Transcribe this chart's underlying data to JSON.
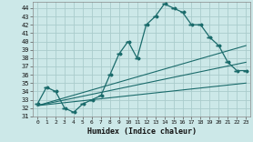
{
  "xlabel": "Humidex (Indice chaleur)",
  "bg_color": "#cce8e8",
  "grid_color": "#aacccc",
  "line_color": "#1a6b6b",
  "xlim": [
    -0.5,
    23.5
  ],
  "ylim": [
    31,
    44.8
  ],
  "yticks": [
    31,
    32,
    33,
    34,
    35,
    36,
    37,
    38,
    39,
    40,
    41,
    42,
    43,
    44
  ],
  "xticks": [
    0,
    1,
    2,
    3,
    4,
    5,
    6,
    7,
    8,
    9,
    10,
    11,
    12,
    13,
    14,
    15,
    16,
    17,
    18,
    19,
    20,
    21,
    22,
    23
  ],
  "series1_x": [
    0,
    1,
    2,
    3,
    4,
    5,
    6,
    7,
    8,
    9,
    10,
    11,
    12,
    13,
    14,
    15,
    16,
    17,
    18,
    19,
    20,
    21,
    22,
    23
  ],
  "series1_y": [
    32.5,
    34.5,
    34.0,
    32.0,
    31.5,
    32.5,
    33.0,
    33.5,
    36.0,
    38.5,
    40.0,
    38.0,
    42.0,
    43.0,
    44.5,
    44.0,
    43.5,
    42.0,
    42.0,
    40.5,
    39.5,
    37.5,
    36.5,
    36.5
  ],
  "series2_x": [
    0,
    23
  ],
  "series2_y": [
    32.3,
    35.0
  ],
  "series3_x": [
    0,
    23
  ],
  "series3_y": [
    32.3,
    37.5
  ],
  "series4_x": [
    0,
    23
  ],
  "series4_y": [
    32.3,
    39.5
  ]
}
